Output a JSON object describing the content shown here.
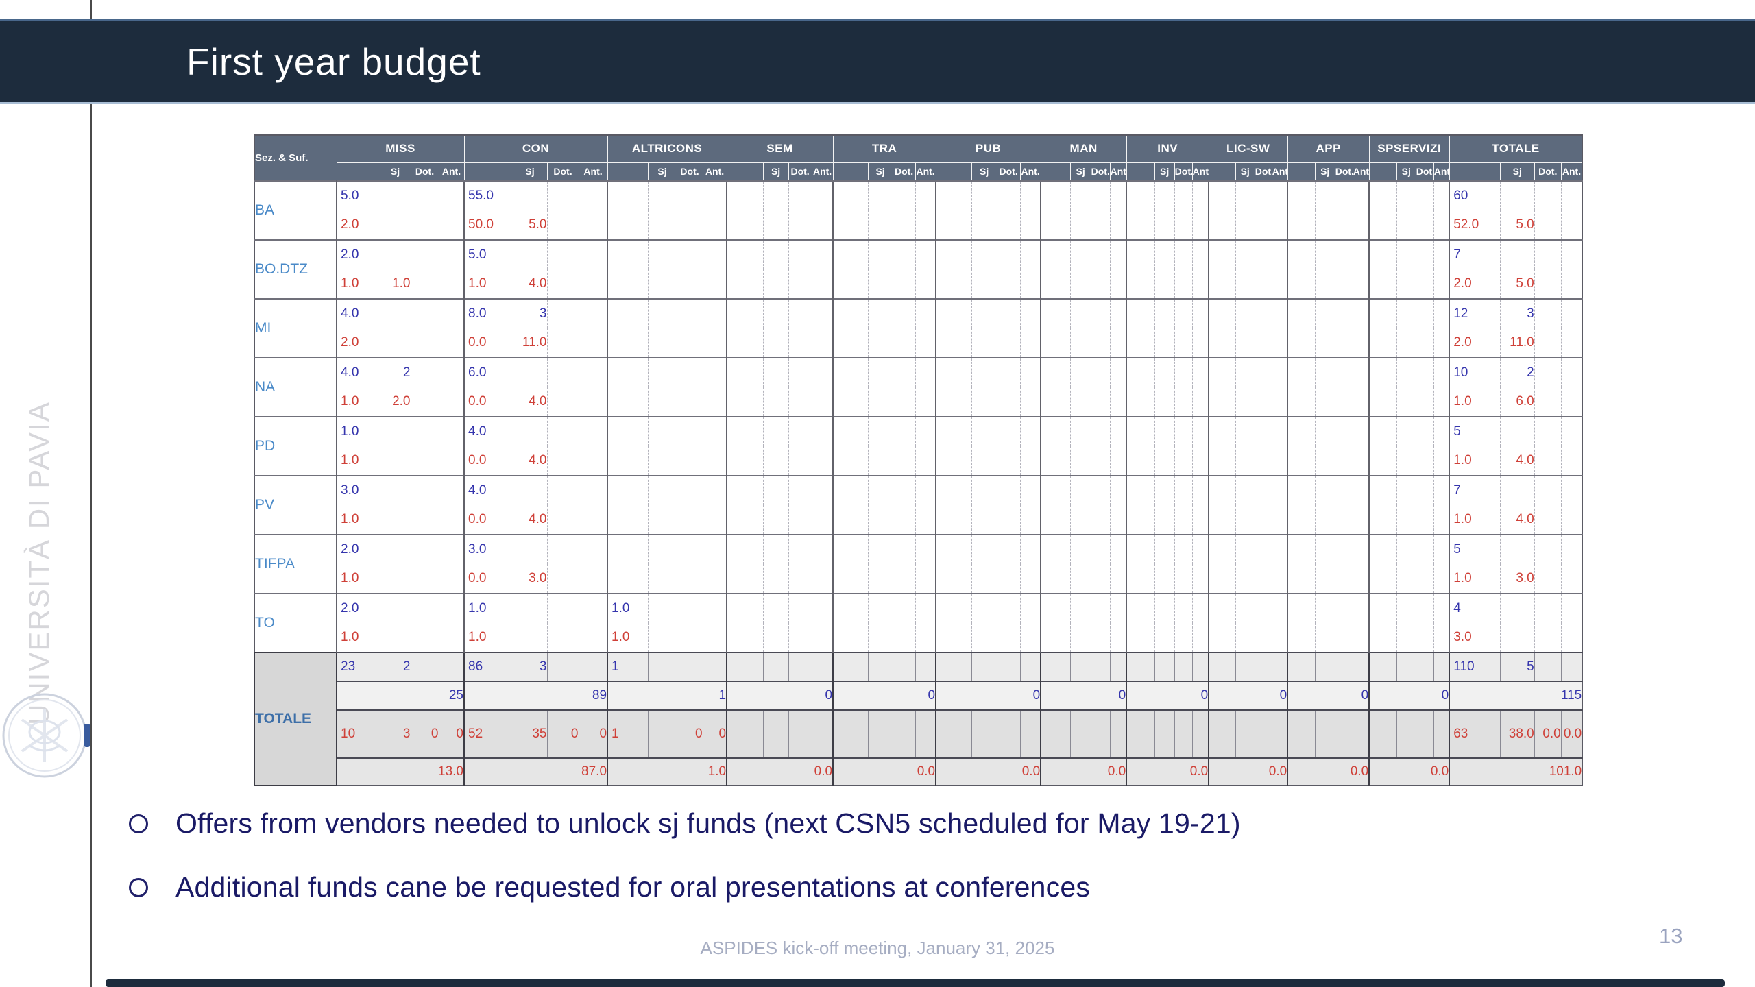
{
  "slide": {
    "title": "First year budget",
    "sidebar_text": "UNIVERSITÀ DI PAVIA",
    "bullets": [
      "Offers from vendors needed to unlock sj funds (next CSN5 scheduled for May 19-21)",
      "Additional funds cane be requested for oral presentations at conferences"
    ],
    "footer": "ASPIDES kick-off meeting, January 31, 2025",
    "page_number": "13"
  },
  "colors": {
    "title_bar_bg": "#1d2c3d",
    "table_header_bg": "#5d6a7d",
    "row_label_blue": "#4a8ac8",
    "value_blue": "#3535ad",
    "value_red": "#cf4038",
    "bullet_text": "#1a1a66"
  },
  "table": {
    "corner_label": "Sez. & Suf.",
    "groups": [
      "MISS",
      "CON",
      "ALTRICONS",
      "SEM",
      "TRA",
      "PUB",
      "MAN",
      "INV",
      "LIC-SW",
      "APP",
      "SPSERVIZI",
      "TOTALE"
    ],
    "subcols": [
      "",
      "Sj",
      "Dot.",
      "Ant."
    ],
    "sections": [
      {
        "label": "BA",
        "top": {
          "MISS": [
            "5.0"
          ],
          "CON": [
            "55.0"
          ],
          "TOTALE": [
            "60"
          ]
        },
        "bottom": {
          "MISS": [
            "2.0"
          ],
          "CON": [
            "50.0",
            "5.0"
          ],
          "TOTALE": [
            "52.0",
            "5.0"
          ]
        }
      },
      {
        "label": "BO.DTZ",
        "top": {
          "MISS": [
            "2.0"
          ],
          "CON": [
            "5.0"
          ],
          "TOTALE": [
            "7"
          ]
        },
        "bottom": {
          "MISS": [
            "1.0",
            "1.0"
          ],
          "CON": [
            "1.0",
            "4.0"
          ],
          "TOTALE": [
            "2.0",
            "5.0"
          ]
        }
      },
      {
        "label": "MI",
        "top": {
          "MISS": [
            "4.0"
          ],
          "CON": [
            "8.0",
            "3"
          ],
          "TOTALE": [
            "12",
            "3"
          ]
        },
        "bottom": {
          "MISS": [
            "2.0"
          ],
          "CON": [
            "0.0",
            "11.0"
          ],
          "TOTALE": [
            "2.0",
            "11.0"
          ]
        }
      },
      {
        "label": "NA",
        "top": {
          "MISS": [
            "4.0",
            "2"
          ],
          "CON": [
            "6.0"
          ],
          "TOTALE": [
            "10",
            "2"
          ]
        },
        "bottom": {
          "MISS": [
            "1.0",
            "2.0"
          ],
          "CON": [
            "0.0",
            "4.0"
          ],
          "TOTALE": [
            "1.0",
            "6.0"
          ]
        }
      },
      {
        "label": "PD",
        "top": {
          "MISS": [
            "1.0"
          ],
          "CON": [
            "4.0"
          ],
          "TOTALE": [
            "5"
          ]
        },
        "bottom": {
          "MISS": [
            "1.0"
          ],
          "CON": [
            "0.0",
            "4.0"
          ],
          "TOTALE": [
            "1.0",
            "4.0"
          ]
        }
      },
      {
        "label": "PV",
        "top": {
          "MISS": [
            "3.0"
          ],
          "CON": [
            "4.0"
          ],
          "TOTALE": [
            "7"
          ]
        },
        "bottom": {
          "MISS": [
            "1.0"
          ],
          "CON": [
            "0.0",
            "4.0"
          ],
          "TOTALE": [
            "1.0",
            "4.0"
          ]
        }
      },
      {
        "label": "TIFPA",
        "top": {
          "MISS": [
            "2.0"
          ],
          "CON": [
            "3.0"
          ],
          "TOTALE": [
            "5"
          ]
        },
        "bottom": {
          "MISS": [
            "1.0"
          ],
          "CON": [
            "0.0",
            "3.0"
          ],
          "TOTALE": [
            "1.0",
            "3.0"
          ]
        }
      },
      {
        "label": "TO",
        "top": {
          "MISS": [
            "2.0"
          ],
          "CON": [
            "1.0"
          ],
          "ALTRICONS": [
            "1.0"
          ],
          "TOTALE": [
            "4"
          ]
        },
        "bottom": {
          "MISS": [
            "1.0"
          ],
          "CON": [
            "1.0"
          ],
          "ALTRICONS": [
            "1.0"
          ],
          "TOTALE": [
            "3.0"
          ]
        }
      }
    ],
    "totals": {
      "label": "TOTALE",
      "detail_top": {
        "MISS": [
          "23",
          "2"
        ],
        "CON": [
          "86",
          "3"
        ],
        "ALTRICONS": [
          "1"
        ],
        "TOTALE": [
          "110",
          "5"
        ]
      },
      "merged_top": {
        "MISS": "25",
        "CON": "89",
        "ALTRICONS": "1",
        "SEM": "0",
        "TRA": "0",
        "PUB": "0",
        "MAN": "0",
        "INV": "0",
        "LIC-SW": "0",
        "APP": "0",
        "SPSERVIZI": "0",
        "TOTALE": "115"
      },
      "detail_bottom": {
        "MISS": [
          "10",
          "3",
          "0",
          "0"
        ],
        "CON": [
          "52",
          "35",
          "0",
          "0"
        ],
        "ALTRICONS": [
          "1",
          "",
          "0",
          "0"
        ],
        "TOTALE": [
          "63",
          "38.0",
          "0.0",
          "0.0"
        ]
      },
      "merged_bottom": {
        "MISS": "13.0",
        "CON": "87.0",
        "ALTRICONS": "1.0",
        "SEM": "0.0",
        "TRA": "0.0",
        "PUB": "0.0",
        "MAN": "0.0",
        "INV": "0.0",
        "LIC-SW": "0.0",
        "APP": "0.0",
        "SPSERVIZI": "0.0",
        "TOTALE": "101.0"
      }
    }
  }
}
